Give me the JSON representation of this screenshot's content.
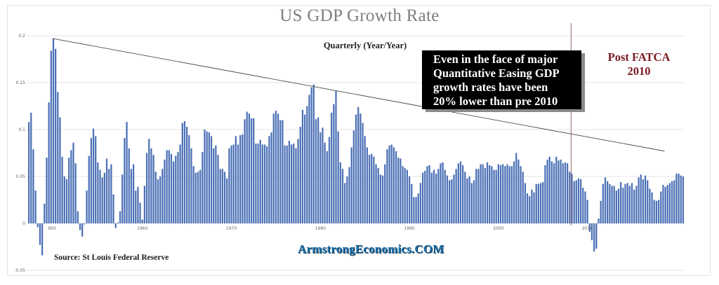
{
  "chart_data": {
    "type": "bar",
    "title": "US GDP Growth Rate",
    "subtitle": "Quarterly (Year/Year)",
    "xlabel": "",
    "ylabel": "",
    "ylim": [
      -0.05,
      0.2
    ],
    "grid": true,
    "y_ticks": [
      "0.2",
      "0.15",
      "0.1",
      "0.05",
      "0",
      "-0.05"
    ],
    "y_tick_values": [
      0.2,
      0.15,
      0.1,
      0.05,
      0,
      -0.05
    ],
    "x_ticks": [
      "950",
      "1960",
      "1970",
      "1980",
      "1990",
      "2000",
      "2010"
    ],
    "x_tick_years": [
      1950,
      1960,
      1970,
      1980,
      1990,
      2000,
      2010
    ],
    "start": "1948Q1",
    "series": [
      {
        "name": "US GDP Growth Rate",
        "color": "#4a6fb5",
        "values": [
          0.108,
          0.118,
          0.079,
          0.035,
          -0.004,
          -0.023,
          -0.034,
          0.021,
          0.07,
          0.129,
          0.184,
          0.197,
          0.186,
          0.14,
          0.113,
          0.071,
          0.05,
          0.047,
          0.07,
          0.078,
          0.086,
          0.064,
          0.013,
          -0.007,
          -0.014,
          -0.001,
          0.035,
          0.072,
          0.091,
          0.101,
          0.093,
          0.065,
          0.057,
          0.049,
          0.054,
          0.069,
          0.058,
          0.063,
          0.031,
          -0.005,
          0.001,
          0.013,
          0.052,
          0.091,
          0.108,
          0.08,
          0.058,
          0.063,
          0.035,
          0.039,
          0.022,
          0.004,
          0.04,
          0.075,
          0.09,
          0.08,
          0.073,
          0.055,
          0.047,
          0.05,
          0.058,
          0.068,
          0.078,
          0.078,
          0.074,
          0.066,
          0.072,
          0.076,
          0.084,
          0.107,
          0.109,
          0.103,
          0.094,
          0.08,
          0.061,
          0.054,
          0.055,
          0.057,
          0.076,
          0.1,
          0.098,
          0.097,
          0.093,
          0.08,
          0.083,
          0.073,
          0.058,
          0.058,
          0.055,
          0.048,
          0.08,
          0.083,
          0.084,
          0.093,
          0.084,
          0.094,
          0.095,
          0.111,
          0.119,
          0.117,
          0.112,
          0.112,
          0.085,
          0.085,
          0.089,
          0.084,
          0.084,
          0.082,
          0.093,
          0.097,
          0.117,
          0.12,
          0.117,
          0.11,
          0.11,
          0.083,
          0.083,
          0.088,
          0.084,
          0.085,
          0.08,
          0.09,
          0.103,
          0.121,
          0.116,
          0.125,
          0.137,
          0.145,
          0.148,
          0.111,
          0.113,
          0.097,
          0.102,
          0.086,
          0.077,
          0.092,
          0.118,
          0.127,
          0.141,
          0.098,
          0.065,
          0.058,
          0.043,
          0.05,
          0.06,
          0.081,
          0.099,
          0.116,
          0.124,
          0.117,
          0.107,
          0.093,
          0.081,
          0.073,
          0.074,
          0.071,
          0.063,
          0.059,
          0.052,
          0.051,
          0.063,
          0.079,
          0.083,
          0.084,
          0.081,
          0.077,
          0.07,
          0.069,
          0.061,
          0.059,
          0.057,
          0.05,
          0.042,
          0.028,
          0.028,
          0.032,
          0.043,
          0.054,
          0.056,
          0.061,
          0.062,
          0.054,
          0.057,
          0.053,
          0.058,
          0.064,
          0.065,
          0.057,
          0.051,
          0.046,
          0.047,
          0.052,
          0.058,
          0.064,
          0.066,
          0.062,
          0.055,
          0.048,
          0.05,
          0.043,
          0.046,
          0.058,
          0.058,
          0.063,
          0.063,
          0.059,
          0.065,
          0.062,
          0.061,
          0.057,
          0.057,
          0.063,
          0.062,
          0.063,
          0.061,
          0.063,
          0.061,
          0.061,
          0.066,
          0.075,
          0.068,
          0.061,
          0.055,
          0.043,
          0.032,
          0.029,
          0.036,
          0.033,
          0.042,
          0.042,
          0.043,
          0.044,
          0.062,
          0.068,
          0.071,
          0.066,
          0.064,
          0.071,
          0.067,
          0.068,
          0.064,
          0.065,
          0.064,
          0.055,
          0.053,
          0.045,
          0.046,
          0.048,
          0.047,
          0.038,
          0.034,
          0.025,
          -0.009,
          -0.018,
          -0.03,
          -0.027,
          0.005,
          0.024,
          0.042,
          0.049,
          0.045,
          0.042,
          0.04,
          0.04,
          0.035,
          0.037,
          0.044,
          0.038,
          0.042,
          0.043,
          0.04,
          0.043,
          0.036,
          0.04,
          0.049,
          0.052,
          0.047,
          0.051,
          0.046,
          0.037,
          0.033,
          0.025,
          0.024,
          0.025,
          0.034,
          0.041,
          0.039,
          0.041,
          0.043,
          0.045,
          0.046,
          0.053,
          0.053,
          0.051,
          0.05
        ]
      }
    ],
    "trendline": {
      "from": {
        "year": 1950.75,
        "value": 0.197
      },
      "to": {
        "year": 2019.5,
        "value": 0.077
      },
      "color": "#333333"
    },
    "marker_line": {
      "year": 2009.0,
      "color": "#8f6b6b"
    },
    "annotations": {
      "callout": [
        "Even in the face of  major",
        "Quantitative Easing GDP",
        "growth rates have been",
        "20% lower than pre 2010"
      ],
      "post_fatca": [
        "Post FATCA",
        "2010"
      ],
      "source": "Source: St Louis Federal Reserve",
      "brand": "ArmstrongEconomics.COM"
    }
  }
}
